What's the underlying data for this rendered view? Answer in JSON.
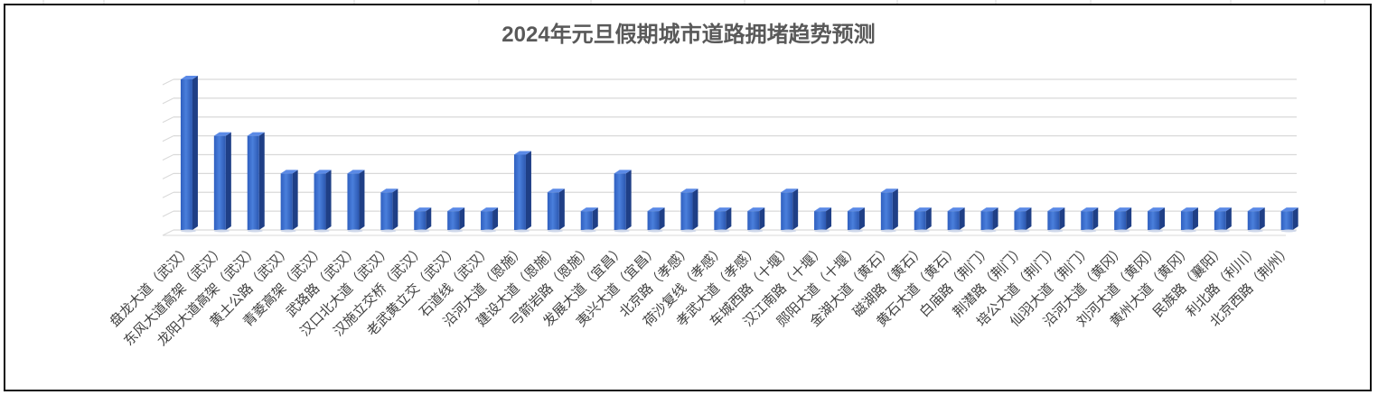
{
  "chart_data": {
    "type": "bar",
    "style": "3d-column",
    "title": "2024年元旦假期城市道路拥堵趋势预测",
    "xlabel": "",
    "ylabel": "",
    "y_axis_labels_visible": false,
    "grid": true,
    "legend": "none",
    "bar_color": "#3f6fc9",
    "categories": [
      "盘龙大道（武汉）",
      "东风大道高架（武汉）",
      "龙阳大道高架（武汉）",
      "黄土公路（武汉）",
      "青菱高架（武汉）",
      "武珞路（武汉）",
      "汉口北大道（武汉）",
      "汉施立交桥（武汉）",
      "老武黄立交（武汉）",
      "石道线（武汉）",
      "沿河大道（恩施）",
      "建设大道（恩施）",
      "弓箭岩路（恩施）",
      "发展大道（宜昌）",
      "夷兴大道（宜昌）",
      "北京路（孝感）",
      "荷沙复线（孝感）",
      "孝武大道（孝感）",
      "车城西路（十堰）",
      "汉江南路（十堰）",
      "郧阳大道（十堰）",
      "金湖大道（黄石）",
      "磁湖路（黄石）",
      "黄石大道（黄石）",
      "白庙路（荆门）",
      "荆潜路（荆门）",
      "培公大道（荆门）",
      "仙羽大道（荆门）",
      "沿河大道（黄冈）",
      "刘河大道（黄冈）",
      "黄州大道（黄冈）",
      "民族路（襄阳）",
      "利北路（利川）",
      "北京西路（荆州）"
    ],
    "values": [
      8,
      5,
      5,
      3,
      3,
      3,
      2,
      1,
      1,
      1,
      4,
      2,
      1,
      3,
      1,
      2,
      1,
      1,
      2,
      1,
      1,
      2,
      1,
      1,
      1,
      1,
      1,
      1,
      1,
      1,
      1,
      1,
      1,
      1
    ],
    "ylim": [
      0,
      8
    ]
  }
}
